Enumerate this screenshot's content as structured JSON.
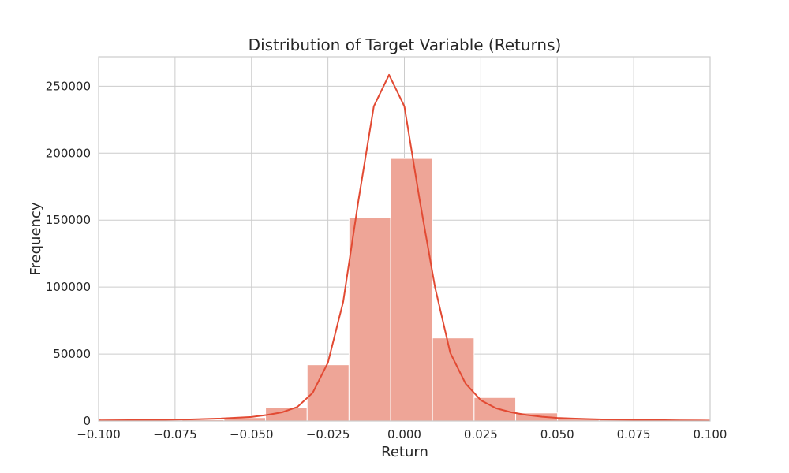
{
  "chart_data": {
    "type": "bar",
    "title": "Distribution of Target Variable (Returns)",
    "xlabel": "Return",
    "ylabel": "Frequency",
    "xlim": [
      -0.1,
      0.1
    ],
    "ylim": [
      0,
      272000
    ],
    "grid": true,
    "x_ticks": [
      -0.1,
      -0.075,
      -0.05,
      -0.025,
      0.0,
      0.025,
      0.05,
      0.075,
      0.1
    ],
    "x_tick_labels": [
      "−0.100",
      "−0.075",
      "−0.050",
      "−0.025",
      "0.000",
      "0.025",
      "0.050",
      "0.075",
      "0.100"
    ],
    "y_ticks": [
      0,
      50000,
      100000,
      150000,
      200000,
      250000
    ],
    "y_tick_labels": [
      "0",
      "50000",
      "100000",
      "150000",
      "200000",
      "250000"
    ],
    "bins": [
      {
        "x0": -0.1,
        "x1": -0.0863,
        "value": 300
      },
      {
        "x0": -0.0863,
        "x1": -0.0727,
        "value": 600
      },
      {
        "x0": -0.0727,
        "x1": -0.059,
        "value": 900
      },
      {
        "x0": -0.059,
        "x1": -0.0454,
        "value": 2500
      },
      {
        "x0": -0.0454,
        "x1": -0.0318,
        "value": 10000
      },
      {
        "x0": -0.0318,
        "x1": -0.0181,
        "value": 42000
      },
      {
        "x0": -0.0181,
        "x1": -0.0045,
        "value": 152000
      },
      {
        "x0": -0.0045,
        "x1": 0.0092,
        "value": 196000
      },
      {
        "x0": 0.0092,
        "x1": 0.0228,
        "value": 62000
      },
      {
        "x0": 0.0228,
        "x1": 0.0364,
        "value": 17500
      },
      {
        "x0": 0.0364,
        "x1": 0.0501,
        "value": 6000
      },
      {
        "x0": 0.0501,
        "x1": 0.0637,
        "value": 2000
      },
      {
        "x0": 0.0637,
        "x1": 0.0774,
        "value": 1000
      },
      {
        "x0": 0.0774,
        "x1": 0.091,
        "value": 600
      },
      {
        "x0": 0.091,
        "x1": 0.1,
        "value": 300
      }
    ],
    "kde": {
      "x": [
        -0.1,
        -0.09,
        -0.08,
        -0.07,
        -0.06,
        -0.05,
        -0.045,
        -0.04,
        -0.035,
        -0.03,
        -0.025,
        -0.02,
        -0.015,
        -0.01,
        -0.005,
        0.0,
        0.005,
        0.01,
        0.015,
        0.02,
        0.025,
        0.03,
        0.035,
        0.04,
        0.045,
        0.05,
        0.055,
        0.06,
        0.065,
        0.07,
        0.08,
        0.09,
        0.1
      ],
      "y": [
        500,
        600,
        800,
        1200,
        1800,
        3000,
        4500,
        6500,
        10500,
        21000,
        43500,
        89000,
        165000,
        235000,
        258500,
        235000,
        165000,
        100000,
        51000,
        28000,
        15500,
        9500,
        6500,
        4500,
        3200,
        2300,
        1800,
        1500,
        1200,
        1000,
        700,
        500,
        300
      ]
    },
    "colors": {
      "bar_fill": "#eea597",
      "bar_edge": "#ffffff",
      "kde_line": "#e24a33",
      "grid": "#cccccc",
      "text": "#262626"
    }
  }
}
